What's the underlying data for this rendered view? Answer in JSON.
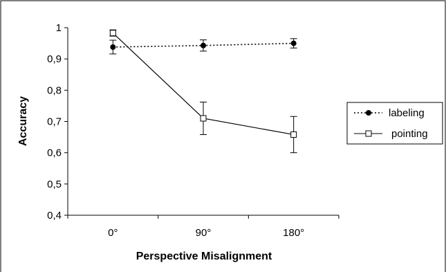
{
  "chart_data": {
    "type": "line",
    "title": "",
    "xlabel": "Perspective Misalignment",
    "ylabel": "Accuracy",
    "categories": [
      "0°",
      "90°",
      "180°"
    ],
    "ylim": [
      0.4,
      1.0
    ],
    "y_ticks": [
      "0,4",
      "0,5",
      "0,6",
      "0,7",
      "0,8",
      "0,9",
      "1"
    ],
    "grid": false,
    "legend_position": "right",
    "series": [
      {
        "name": "labeling",
        "style": "dotted",
        "marker": "filled-circle",
        "color": "#000000",
        "values": [
          0.938,
          0.943,
          0.95
        ],
        "error": [
          0.022,
          0.018,
          0.015
        ]
      },
      {
        "name": "pointing",
        "style": "solid",
        "marker": "open-square",
        "color": "#000000",
        "values": [
          0.983,
          0.71,
          0.658
        ],
        "error": [
          0.01,
          0.052,
          0.058
        ]
      }
    ]
  }
}
